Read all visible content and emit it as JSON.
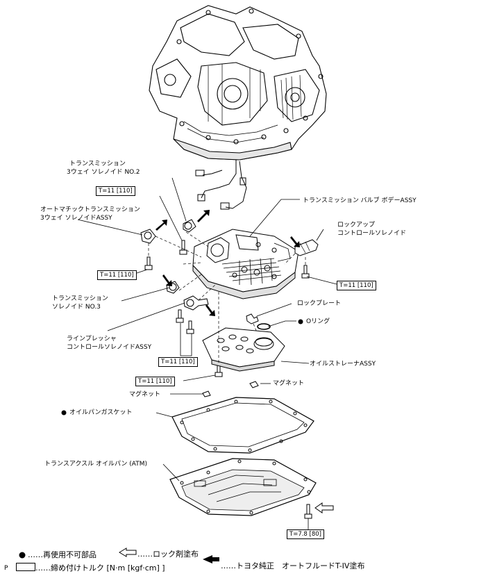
{
  "labels": {
    "solenoid_no2_l1": "トランスミッション",
    "solenoid_no2_l2": "3ウェイ ソレノイド NO.2",
    "auto_trans_l1": "オートマチックトランスミッション",
    "auto_trans_l2": "3ウェイ ソレノイドASSY",
    "valve_body": "トランスミッション バルブ ボデーASSY",
    "lockup_l1": "ロックアップ",
    "lockup_l2": "コントロールソレノイド",
    "solenoid_no3_l1": "トランスミッション",
    "solenoid_no3_l2": "ソレノイド NO.3",
    "lock_plate": "ロックプレート",
    "o_ring": "Oリング",
    "line_pressure_l1": "ラインプレッシャ",
    "line_pressure_l2": "コントロールソレノイドASSY",
    "strainer": "オイルストレーナASSY",
    "magnet_right": "マグネット",
    "magnet_left": "マグネット",
    "gasket": "オイルパンガスケット",
    "oil_pan": "トランスアクスル オイルパン (ATM)",
    "page_marker": "P"
  },
  "torques": {
    "t1": "T=11 [110]",
    "t2": "T=11 [110]",
    "t3": "T=11 [110]",
    "t4": "T=11 [110]",
    "t5": "T=11 [110]",
    "t6": "T=7.8 [80]"
  },
  "legend": {
    "non_reusable": "……再使用不可部品",
    "lock_agent": "……ロック剤塗布",
    "torque_unit": "……締め付けトルク [N·m [kgf·cm] ]",
    "fluid": "……トヨタ純正　オートフルードT-IV塗布"
  },
  "colors": {
    "line": "#000000",
    "paper": "#ffffff",
    "shade": "#c8c8c8"
  }
}
